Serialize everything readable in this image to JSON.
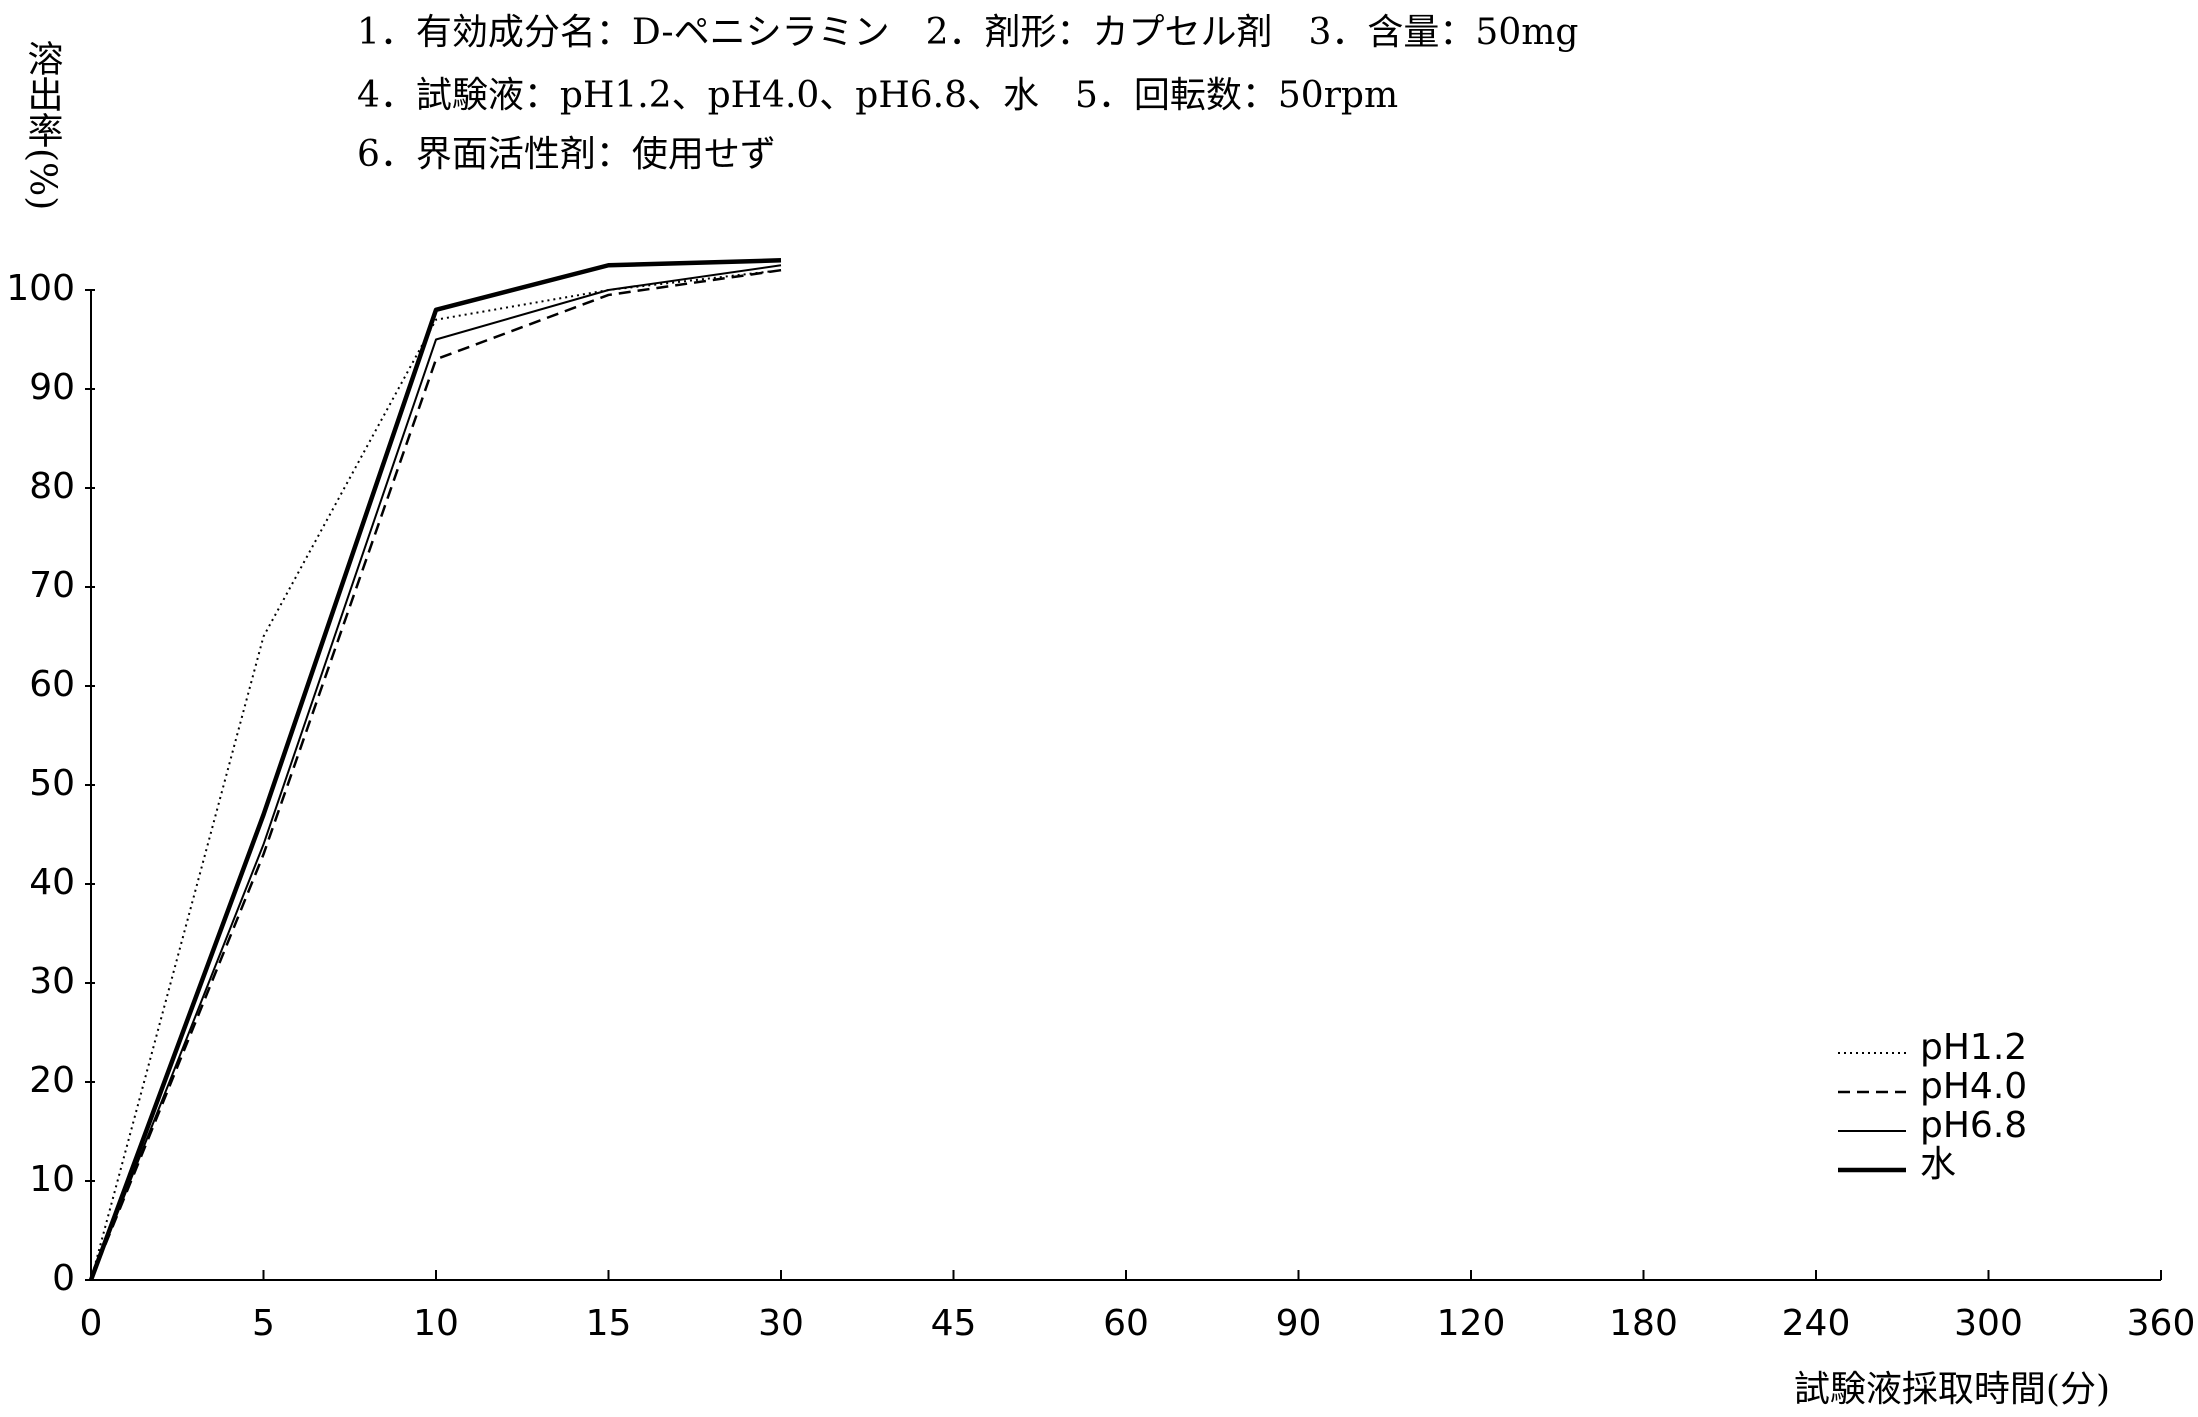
{
  "chart_data": {
    "type": "line",
    "header_lines": [
      "1．有効成分名：D-ペニシラミン　2．剤形：カプセル剤　3．含量：50mg",
      "4．試験液：pH1.2、pH4.0、pH6.8、水　5．回転数：50rpm",
      "6．界面活性剤：使用せず"
    ],
    "y_label": "溶出率(%)",
    "x_label": "試験液採取時間(分)",
    "categories": [
      "0",
      "5",
      "10",
      "15",
      "30",
      "45",
      "60",
      "90",
      "120",
      "180",
      "240",
      "300",
      "360"
    ],
    "ylim": [
      0,
      100
    ],
    "yticks": [
      0,
      10,
      20,
      30,
      40,
      50,
      60,
      70,
      80,
      90,
      100
    ],
    "legend": "right",
    "series": [
      {
        "name": "pH1.2",
        "color": "#000000",
        "style": "dotted",
        "values": [
          0,
          65,
          97,
          100,
          102,
          null,
          null,
          null,
          null,
          null,
          null,
          null,
          null
        ]
      },
      {
        "name": "pH4.0",
        "color": "#000000",
        "style": "dashed",
        "values": [
          0,
          43,
          93,
          99.5,
          102,
          null,
          null,
          null,
          null,
          null,
          null,
          null,
          null
        ]
      },
      {
        "name": "pH6.8",
        "color": "#000000",
        "style": "thin",
        "values": [
          0,
          44,
          95,
          100,
          102.5,
          null,
          null,
          null,
          null,
          null,
          null,
          null,
          null
        ]
      },
      {
        "name": "水",
        "color": "#000000",
        "style": "thick",
        "values": [
          0,
          47,
          98,
          102.5,
          103,
          null,
          null,
          null,
          null,
          null,
          null,
          null,
          null
        ]
      }
    ]
  }
}
